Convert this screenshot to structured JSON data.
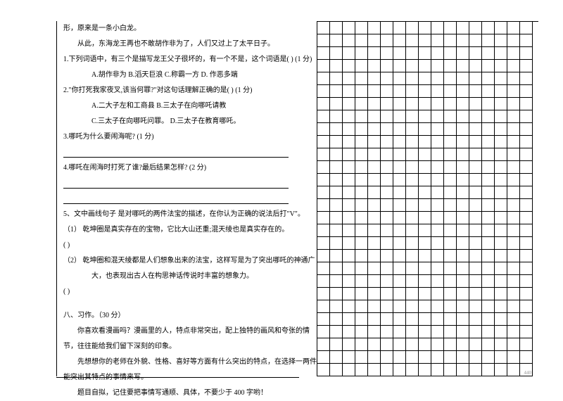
{
  "left": {
    "l1": "形，原来是一条小白龙。",
    "l2": "从此，东海龙王再也不敢胡作非为了，人们又过上了太平日子。",
    "q1": "1.下列词语中，有三个是描写龙王父子很坏的，有一个不是，这个词语是(    ) (1 分)",
    "q1opts": "A.胡作非为   B.滔天巨浪   C.称霸一方   D. 作恶多端",
    "q2": "2.\"你打死我家夜叉,该当何罪?\"对这句话理解正确的是(         ) (1 分)",
    "q2a": "A.二大子左和工商县   B.三太子在向哪吒请教",
    "q2b": "C.三太子在向哪吒问罪。  D.三太子在教育哪吒。",
    "q3": "3.哪吒为什么要闹海呢? (1 分)",
    "q4": "4.哪吒在闹海时打死了谁?最后结果怎样? (2 分)",
    "q5": "5、文中画线句子 是对哪吒的两件法宝的描述，在你认为正确的说法后打\"V\"。",
    "q5a": "（1）  乾坤圈是真实存在的宝物，它比大山还重;混天绫也是真实存在的。",
    "q5ap": "(          )",
    "q5b": "（2）  乾坤圈和混天绫都是人们想象出来的法宝，这样写是为了突出哪吒的神通广",
    "q5b2": "大，也表现出古人在构思神话传说时丰富的想象力。",
    "q5bp": "(          )",
    "s8": "八、习作。（30 分）",
    "s8a": "你喜欢看漫画吗？漫画里的人，特点非常突出，配上独特的画风和夸张的情",
    "s8b": "节，往往能给我们留下深刻的印象。",
    "s8c": "先想想你的老师在外貌、性格、喜好等方面有什么突出的特点，在选择一两件",
    "s8d": "能突出其特点的事情来写。",
    "s8e": "题目自拟，记住要把事情写通顺、具体，不要少于 400 字哟！"
  },
  "grid": {
    "rows": 28,
    "cols": 17,
    "markRow": 27,
    "markCol": 16,
    "markText": "440"
  }
}
